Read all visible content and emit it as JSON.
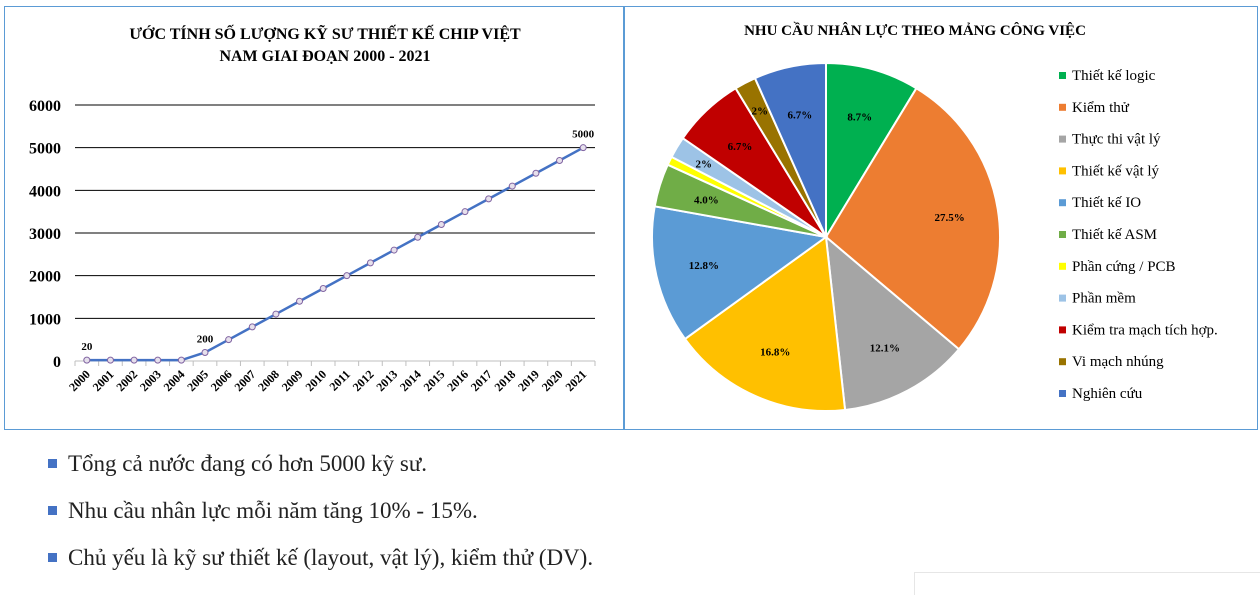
{
  "chart_data": [
    {
      "type": "line",
      "title": "ƯỚC TÍNH SỐ LƯỢNG KỸ SƯ THIẾT KẾ CHIP VIỆT NAM GIAI ĐOẠN 2000 - 2021",
      "title_lines": [
        "ƯỚC TÍNH SỐ LƯỢNG KỸ SƯ THIẾT KẾ CHIP VIỆT",
        "NAM GIAI ĐOẠN 2000 - 2021"
      ],
      "xlabel": "",
      "ylabel": "",
      "ylim": [
        0,
        6000
      ],
      "y_ticks": [
        0,
        1000,
        2000,
        3000,
        4000,
        5000,
        6000
      ],
      "grid": true,
      "categories": [
        "2000",
        "2001",
        "2002",
        "2003",
        "2004",
        "2005",
        "2006",
        "2007",
        "2008",
        "2009",
        "2010",
        "2011",
        "2012",
        "2013",
        "2014",
        "2015",
        "2016",
        "2017",
        "2018",
        "2019",
        "2020",
        "2021"
      ],
      "series": [
        {
          "values": [
            20,
            20,
            20,
            20,
            20,
            200,
            500,
            800,
            1100,
            1400,
            1700,
            2000,
            2300,
            2600,
            2900,
            3200,
            3500,
            3800,
            4100,
            4400,
            4700,
            5000
          ],
          "color": "#4472c4"
        }
      ],
      "data_labels": [
        {
          "index": 0,
          "text": "20"
        },
        {
          "index": 5,
          "text": "200"
        },
        {
          "index": 21,
          "text": "5000"
        }
      ]
    },
    {
      "type": "pie",
      "title": "NHU CẦU NHÂN LỰC THEO MẢNG CÔNG VIỆC",
      "legend_position": "right",
      "slices": [
        {
          "label": "Thiết kế logic",
          "value": 8.7,
          "display": "8.7%",
          "color": "#00b050"
        },
        {
          "label": "Kiểm thử",
          "value": 27.5,
          "display": "27.5%",
          "color": "#ed7d31"
        },
        {
          "label": "Thực thi vật lý",
          "value": 12.1,
          "display": "12.1%",
          "color": "#a5a5a5"
        },
        {
          "label": "Thiết kế vật lý",
          "value": 16.8,
          "display": "16.8%",
          "color": "#ffc000"
        },
        {
          "label": "Thiết kế IO",
          "value": 12.8,
          "display": "12.8%",
          "color": "#5b9bd5"
        },
        {
          "label": "Thiết kế ASM",
          "value": 4.0,
          "display": "4.0%",
          "color": "#70ad47"
        },
        {
          "label": "Phần cứng / PCB",
          "value": 0.8,
          "display": "",
          "color": "#ffff00"
        },
        {
          "label": "Phần mềm",
          "value": 2.0,
          "display": "2%",
          "color": "#9dc3e6"
        },
        {
          "label": "Kiểm tra mạch tích hợp.",
          "value": 6.7,
          "display": "6.7%",
          "color": "#c00000"
        },
        {
          "label": "Vi mạch nhúng",
          "value": 2.0,
          "display": "2%",
          "color": "#997300"
        },
        {
          "label": "Nghiên cứu",
          "value": 6.7,
          "display": "6.7%",
          "color": "#4472c4"
        }
      ]
    }
  ],
  "notes": [
    "Tổng cả nước đang có hơn 5000 kỹ sư.",
    "Nhu cầu nhân lực mỗi năm tăng 10% - 15%.",
    "Chủ yếu là kỹ sư thiết kế (layout, vật lý), kiểm thử (DV)."
  ]
}
